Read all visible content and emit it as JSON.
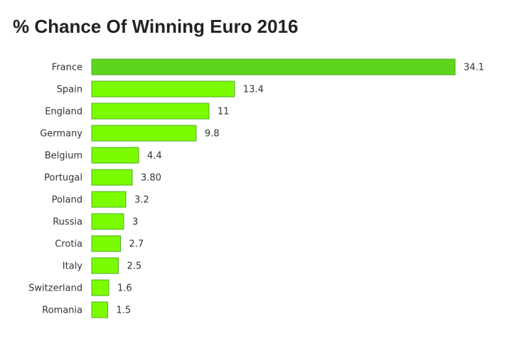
{
  "chart_data": {
    "type": "bar",
    "orientation": "horizontal",
    "title": "% Chance Of Winning Euro 2016",
    "xlabel": "",
    "ylabel": "",
    "categories": [
      "France",
      "Spain",
      "England",
      "Germany",
      "Belgium",
      "Portugal",
      "Poland",
      "Russia",
      "Crotia",
      "Italy",
      "Switzerland",
      "Romania"
    ],
    "values": [
      34.1,
      13.4,
      11,
      9.8,
      4.4,
      3.8,
      3.2,
      3,
      2.7,
      2.5,
      1.6,
      1.5
    ],
    "value_labels": [
      "34.1",
      "13.4",
      "11",
      "9.8",
      "4.4",
      "3.80",
      "3.2",
      "3",
      "2.7",
      "2.5",
      "1.6",
      "1.5"
    ],
    "xlim": [
      0,
      34.1
    ],
    "grid": false,
    "legend": "none",
    "colors": {
      "top_bar": "#5ed41c",
      "bar": "#7cfc00",
      "bar_stroke": "#4caf20"
    }
  }
}
